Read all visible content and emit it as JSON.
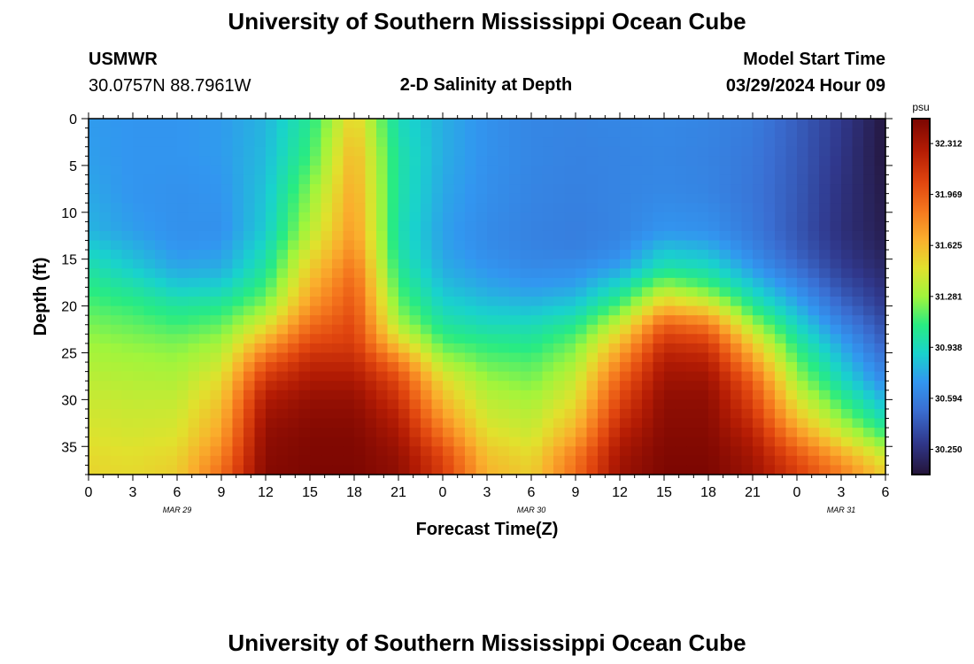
{
  "header": {
    "title": "University of Southern Mississippi Ocean Cube",
    "station_id": "USMWR",
    "station_coords": "30.0757N  88.7961W",
    "plot_title": "2-D Salinity at Depth",
    "model_label": "Model Start Time",
    "model_time": "03/29/2024 Hour 09"
  },
  "footer": {
    "title": "University of Southern Mississippi Ocean Cube"
  },
  "chart_data": {
    "type": "heatmap",
    "title": "2-D Salinity at Depth",
    "xlabel": "Forecast Time(Z)",
    "ylabel": "Depth (ft)",
    "x_tick_labels": [
      "0",
      "3",
      "6",
      "9",
      "12",
      "15",
      "18",
      "21",
      "0",
      "3",
      "6",
      "9",
      "12",
      "15",
      "18",
      "21",
      "0",
      "3",
      "6"
    ],
    "x_range_hours": [
      0,
      54
    ],
    "date_labels": [
      {
        "label": "MAR 29",
        "at_hour": 6
      },
      {
        "label": "MAR 30",
        "at_hour": 30
      },
      {
        "label": "MAR 31",
        "at_hour": 51
      }
    ],
    "y_tick_labels": [
      "0",
      "5",
      "10",
      "15",
      "20",
      "25",
      "30",
      "35"
    ],
    "ylim": [
      0,
      38
    ],
    "y_inverted": true,
    "colorbar": {
      "unit": "psu",
      "ticks": [
        "32.312",
        "31.969",
        "31.625",
        "31.281",
        "30.938",
        "30.594",
        "30.250"
      ],
      "range": [
        30.08,
        32.48
      ]
    },
    "depths_ft": [
      0,
      4,
      8,
      12,
      14,
      16,
      18,
      20,
      22,
      24,
      26,
      28,
      30,
      32,
      34,
      36,
      38
    ],
    "times_h": [
      0,
      3,
      6,
      9,
      12,
      15,
      18,
      21,
      24,
      27,
      30,
      33,
      36,
      39,
      42,
      45,
      48,
      51,
      54
    ],
    "salinity_psu": [
      [
        30.72,
        30.7,
        30.7,
        30.72,
        30.8,
        31.05,
        31.55,
        30.95,
        30.78,
        30.68,
        30.63,
        30.62,
        30.63,
        30.64,
        30.62,
        30.58,
        30.45,
        30.3,
        30.1
      ],
      [
        30.73,
        30.7,
        30.7,
        30.72,
        30.82,
        31.12,
        31.65,
        31.0,
        30.78,
        30.68,
        30.63,
        30.61,
        30.62,
        30.63,
        30.61,
        30.56,
        30.44,
        30.28,
        30.1
      ],
      [
        30.76,
        30.7,
        30.68,
        30.7,
        30.85,
        31.25,
        31.7,
        31.0,
        30.76,
        30.67,
        30.62,
        30.6,
        30.62,
        30.64,
        30.62,
        30.55,
        30.43,
        30.26,
        30.12
      ],
      [
        30.8,
        30.73,
        30.68,
        30.68,
        30.88,
        31.35,
        31.75,
        30.98,
        30.74,
        30.65,
        30.61,
        30.59,
        30.62,
        30.7,
        30.68,
        30.57,
        30.42,
        30.25,
        30.14
      ],
      [
        30.9,
        30.8,
        30.7,
        30.72,
        30.95,
        31.45,
        31.8,
        31.0,
        30.75,
        30.66,
        30.62,
        30.6,
        30.65,
        30.85,
        30.8,
        30.62,
        30.45,
        30.28,
        30.16
      ],
      [
        31.0,
        30.88,
        30.76,
        30.78,
        31.02,
        31.55,
        31.88,
        31.05,
        30.78,
        30.7,
        30.65,
        30.66,
        30.75,
        31.0,
        30.95,
        30.72,
        30.52,
        30.32,
        30.2
      ],
      [
        31.08,
        31.0,
        30.88,
        30.9,
        31.12,
        31.65,
        31.95,
        31.12,
        30.84,
        30.76,
        30.72,
        30.75,
        30.95,
        31.3,
        31.15,
        30.88,
        30.65,
        30.4,
        30.25
      ],
      [
        31.15,
        31.1,
        31.02,
        31.05,
        31.25,
        31.75,
        32.0,
        31.2,
        30.92,
        30.85,
        30.82,
        30.88,
        31.15,
        31.6,
        31.48,
        31.05,
        30.78,
        30.5,
        30.3
      ],
      [
        31.22,
        31.18,
        31.12,
        31.18,
        31.45,
        31.9,
        32.05,
        31.32,
        31.02,
        30.95,
        30.95,
        31.05,
        31.4,
        31.95,
        31.85,
        31.3,
        30.92,
        30.62,
        30.38
      ],
      [
        31.28,
        31.25,
        31.22,
        31.3,
        31.7,
        32.05,
        32.1,
        31.55,
        31.15,
        31.08,
        31.05,
        31.2,
        31.62,
        32.15,
        32.1,
        31.55,
        31.05,
        30.75,
        30.45
      ],
      [
        31.32,
        31.3,
        31.28,
        31.4,
        31.95,
        32.2,
        32.2,
        31.85,
        31.32,
        31.18,
        31.15,
        31.3,
        31.8,
        32.28,
        32.25,
        31.75,
        31.18,
        30.85,
        30.55
      ],
      [
        31.36,
        31.34,
        31.33,
        31.5,
        32.15,
        32.3,
        32.3,
        32.05,
        31.5,
        31.28,
        31.22,
        31.4,
        31.95,
        32.35,
        32.35,
        31.95,
        31.3,
        30.95,
        30.65
      ],
      [
        31.4,
        31.38,
        31.38,
        31.58,
        32.28,
        32.38,
        32.38,
        32.15,
        31.62,
        31.36,
        31.3,
        31.48,
        32.05,
        32.4,
        32.4,
        32.05,
        31.45,
        31.1,
        30.8
      ],
      [
        31.43,
        31.41,
        31.42,
        31.65,
        32.35,
        32.42,
        32.42,
        32.25,
        31.75,
        31.42,
        31.36,
        31.58,
        32.15,
        32.42,
        32.42,
        32.15,
        31.6,
        31.25,
        30.95
      ],
      [
        31.46,
        31.44,
        31.46,
        31.72,
        32.4,
        32.45,
        32.45,
        32.32,
        31.9,
        31.5,
        31.42,
        31.7,
        32.25,
        32.44,
        32.44,
        32.25,
        31.8,
        31.45,
        31.15
      ],
      [
        31.5,
        31.48,
        31.52,
        31.82,
        32.42,
        32.46,
        32.46,
        32.38,
        32.05,
        31.6,
        31.5,
        31.85,
        32.32,
        32.46,
        32.46,
        32.32,
        32.0,
        31.7,
        31.4
      ],
      [
        31.52,
        31.5,
        31.55,
        31.9,
        32.44,
        32.47,
        32.47,
        32.4,
        32.1,
        31.65,
        31.55,
        31.9,
        32.35,
        32.47,
        32.47,
        32.35,
        32.1,
        31.85,
        31.55
      ]
    ],
    "grid": false,
    "legend": "colorbar-right"
  },
  "colors": {
    "text": "#000000",
    "background": "#ffffff"
  }
}
